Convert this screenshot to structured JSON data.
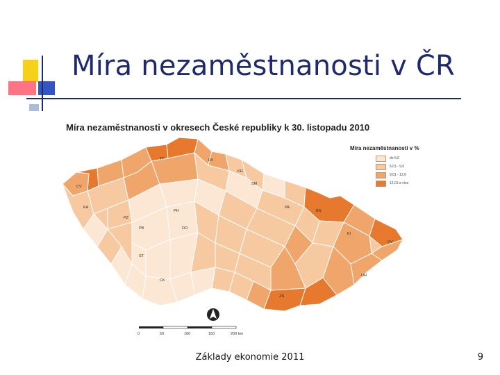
{
  "slide": {
    "title": "Míra nezaměstnanosti v ČR",
    "footer": "Základy ekonomie 2011",
    "page_number": "9"
  },
  "map": {
    "title": "Míra nezaměstnanosti v okresech České republiky k 30. listopadu 2010",
    "legend": {
      "title": "Míra nezaměstnanosti v %",
      "classes": [
        {
          "label": "do 6,0",
          "color": "#fbe7d4"
        },
        {
          "label": "6,01 - 9,0",
          "color": "#f6c9a0"
        },
        {
          "label": "9,01 - 12,0",
          "color": "#f0a56a"
        },
        {
          "label": "12,01 a více",
          "color": "#e7792f"
        }
      ]
    },
    "district_labels": [
      "CV",
      "TP",
      "LB",
      "SM",
      "KA",
      "PA",
      "PZ",
      "PH",
      "PB",
      "KH",
      "BN",
      "DO",
      "ST",
      "CK",
      "ZN",
      "OV",
      "KI",
      "UH"
    ],
    "scale_ticks": [
      "0",
      "50",
      "100",
      "150",
      "200 km"
    ],
    "colors": {
      "border": "#ffffff",
      "title": "#1f2a6e"
    }
  }
}
